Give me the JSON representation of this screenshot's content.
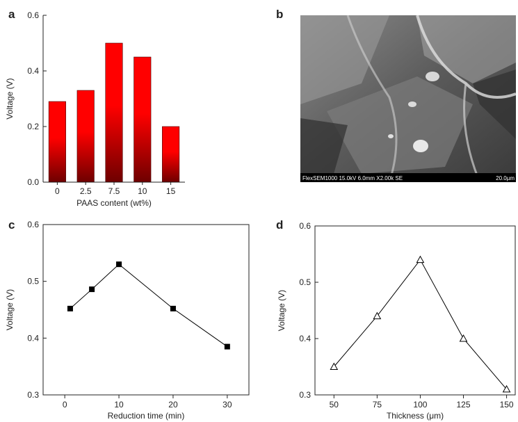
{
  "chart_data": [
    {
      "type": "bar",
      "label": "a",
      "categories": [
        "0",
        "2.5",
        "7.5",
        "10",
        "15"
      ],
      "values": [
        0.29,
        0.33,
        0.5,
        0.45,
        0.2
      ],
      "color": "#ff0000",
      "ylim": [
        0,
        0.6
      ],
      "yticks": [
        {
          "value": 0,
          "label": "0.0"
        },
        0.2,
        0.4,
        0.6
      ],
      "xlabel": "PAAS content (wt%)",
      "ylabel": "Voltage (V)",
      "box": false
    },
    {
      "type": "line",
      "label": "c",
      "x": [
        1,
        5,
        10,
        20,
        30
      ],
      "series": [
        {
          "values": [
            0.452,
            0.486,
            0.53,
            0.452,
            0.385
          ],
          "color": "#000000",
          "marker": "square"
        }
      ],
      "xlim": [
        -4,
        34
      ],
      "xticks": [
        0,
        10,
        20,
        30
      ],
      "ylim": [
        0.3,
        0.6
      ],
      "yticks": [
        0.3,
        0.4,
        0.5,
        0.6
      ],
      "xlabel": "Reduction time (min)",
      "ylabel": "Voltage (V)",
      "box": true
    },
    {
      "type": "line",
      "label": "d",
      "x": [
        50,
        75,
        100,
        125,
        150
      ],
      "series": [
        {
          "values": [
            0.35,
            0.44,
            0.54,
            0.4,
            0.31
          ],
          "color": "#000000",
          "marker": "triangle-open"
        }
      ],
      "xlim": [
        39,
        155
      ],
      "xticks": [
        50,
        75,
        100,
        125,
        150
      ],
      "ylim": [
        0.3,
        0.6
      ],
      "yticks": [
        0.3,
        0.4,
        0.5,
        0.6
      ],
      "xlabel": "Thickness (μm)",
      "ylabel": "Voltage (V)",
      "box": true
    }
  ],
  "image": {
    "label": "b",
    "caption": "FlexSEM1000 15.0kV 6.0mm X2.00k SE",
    "scale": "20.0µm"
  }
}
